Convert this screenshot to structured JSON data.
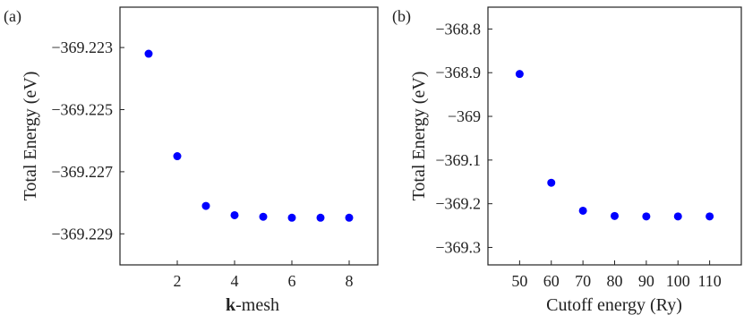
{
  "chart_data": [
    {
      "type": "scatter",
      "panel_label": "(a)",
      "xlabel_bold": "k",
      "xlabel_rest": "-mesh",
      "ylabel": "Total Energy (eV)",
      "xlim": [
        0,
        9
      ],
      "ylim": [
        -369.23,
        -369.2217
      ],
      "xticks": [
        2,
        4,
        6,
        8
      ],
      "xtick_labels": [
        "2",
        "4",
        "6",
        "8"
      ],
      "yticks": [
        -369.223,
        -369.225,
        -369.227,
        -369.229
      ],
      "ytick_labels": [
        "−369.223",
        "−369.225",
        "−369.227",
        "−369.229"
      ],
      "grid": false,
      "marker_color": "#0000ff",
      "x": [
        1,
        2,
        3,
        4,
        5,
        6,
        7,
        8
      ],
      "y": [
        -369.2232,
        -369.2265,
        -369.2281,
        -369.2284,
        -369.22845,
        -369.22848,
        -369.22848,
        -369.22848
      ]
    },
    {
      "type": "scatter",
      "panel_label": "(b)",
      "xlabel": "Cutoff energy (Ry)",
      "ylabel": "Total Energy (eV)",
      "xlim": [
        40,
        120
      ],
      "ylim": [
        -369.34,
        -368.75
      ],
      "xticks": [
        50,
        60,
        70,
        80,
        90,
        100,
        110
      ],
      "xtick_labels": [
        "50",
        "60",
        "70",
        "80",
        "90",
        "100",
        "110"
      ],
      "yticks": [
        -368.8,
        -368.9,
        -369.0,
        -369.1,
        -369.2,
        -369.3
      ],
      "ytick_labels": [
        "−368.8",
        "−368.9",
        "−369",
        "−369.1",
        "−369.2",
        "−369.3"
      ],
      "grid": false,
      "marker_color": "#0000ff",
      "x": [
        50,
        60,
        70,
        80,
        90,
        100,
        110
      ],
      "y": [
        -368.903,
        -369.152,
        -369.216,
        -369.228,
        -369.229,
        -369.229,
        -369.229
      ]
    }
  ]
}
